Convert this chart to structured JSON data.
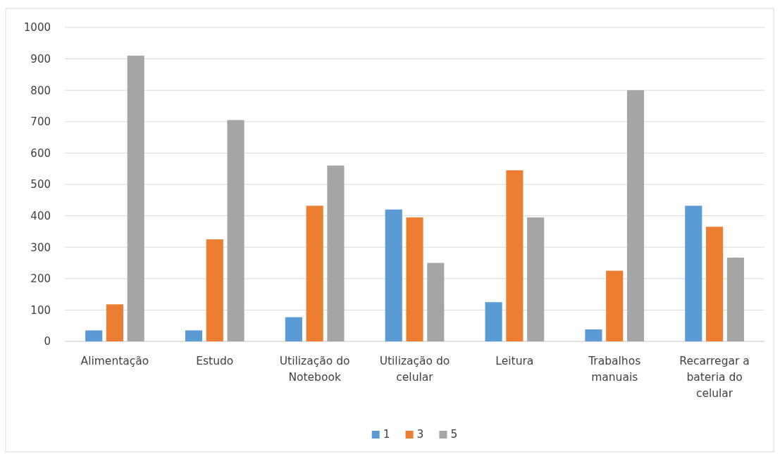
{
  "chart_data": {
    "type": "bar",
    "categories": [
      "Alimentação",
      "Estudo",
      "Utilização do Notebook",
      "Utilização do celular",
      "Leitura",
      "Trabalhos manuais",
      "Recarregar a bateria do celular"
    ],
    "series": [
      {
        "name": "1",
        "color": "#5b9bd5",
        "values": [
          35,
          35,
          77,
          420,
          125,
          38,
          432
        ]
      },
      {
        "name": "3",
        "color": "#ed7d31",
        "values": [
          118,
          325,
          432,
          395,
          545,
          225,
          365
        ]
      },
      {
        "name": "5",
        "color": "#a5a5a5",
        "values": [
          910,
          705,
          560,
          250,
          395,
          800,
          267
        ]
      }
    ],
    "ylim": [
      0,
      1000
    ],
    "yticks": [
      0,
      100,
      200,
      300,
      400,
      500,
      600,
      700,
      800,
      900,
      1000
    ],
    "grid": "y",
    "legend": "bottom"
  }
}
